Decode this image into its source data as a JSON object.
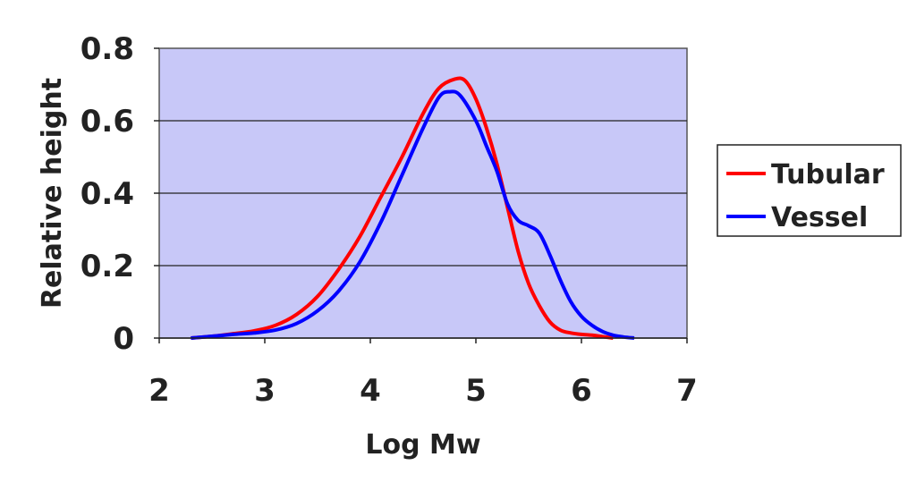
{
  "chart_data": {
    "type": "line",
    "title": "",
    "xlabel": "Log Mw",
    "ylabel": "Relative height",
    "xlim": [
      2,
      7
    ],
    "ylim": [
      0,
      0.8
    ],
    "x_ticks": [
      2,
      3,
      4,
      5,
      6,
      7
    ],
    "x_tick_labels": [
      "2",
      "3",
      "4",
      "5",
      "6",
      "7"
    ],
    "y_ticks": [
      0,
      0.2,
      0.4,
      0.6,
      0.8
    ],
    "y_tick_labels": [
      "0",
      "0.2",
      "0.4",
      "0.6",
      "0.8"
    ],
    "grid": "horizontal",
    "plot_background": "#c8c8f8",
    "legend_position": "right",
    "series": [
      {
        "name": "Tubular",
        "color": "#ff0000",
        "x": [
          2.3,
          2.5,
          2.7,
          2.9,
          3.1,
          3.3,
          3.5,
          3.7,
          3.9,
          4.1,
          4.3,
          4.5,
          4.65,
          4.8,
          4.9,
          5.0,
          5.1,
          5.2,
          5.3,
          5.4,
          5.5,
          5.6,
          5.7,
          5.8,
          5.9,
          6.0,
          6.1,
          6.2,
          6.3
        ],
        "y": [
          0.0,
          0.005,
          0.012,
          0.02,
          0.035,
          0.065,
          0.115,
          0.19,
          0.28,
          0.39,
          0.5,
          0.62,
          0.69,
          0.715,
          0.71,
          0.66,
          0.58,
          0.48,
          0.36,
          0.24,
          0.15,
          0.09,
          0.045,
          0.022,
          0.014,
          0.01,
          0.008,
          0.004,
          0.0
        ]
      },
      {
        "name": "Vessel",
        "color": "#0000ff",
        "x": [
          2.3,
          2.5,
          2.7,
          2.9,
          3.1,
          3.3,
          3.5,
          3.7,
          3.9,
          4.1,
          4.3,
          4.5,
          4.65,
          4.75,
          4.85,
          5.0,
          5.1,
          5.2,
          5.3,
          5.4,
          5.5,
          5.6,
          5.7,
          5.8,
          5.9,
          6.0,
          6.1,
          6.2,
          6.3,
          6.4,
          6.5
        ],
        "y": [
          0.0,
          0.005,
          0.01,
          0.014,
          0.022,
          0.04,
          0.075,
          0.13,
          0.21,
          0.32,
          0.45,
          0.58,
          0.665,
          0.68,
          0.67,
          0.6,
          0.53,
          0.46,
          0.37,
          0.325,
          0.31,
          0.29,
          0.23,
          0.16,
          0.1,
          0.06,
          0.035,
          0.018,
          0.008,
          0.003,
          0.0
        ]
      }
    ]
  }
}
